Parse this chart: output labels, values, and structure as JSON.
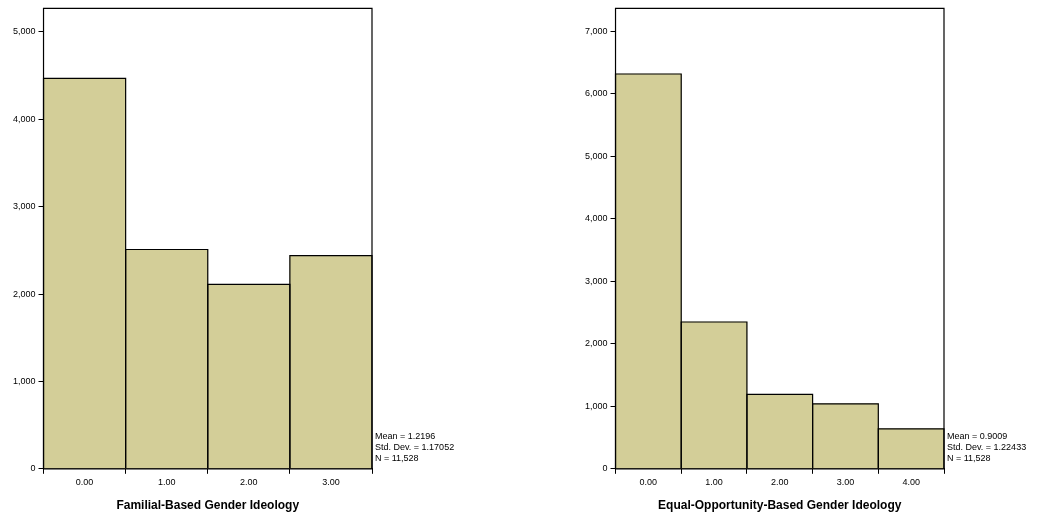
{
  "chart_data": [
    {
      "type": "histogram",
      "xlabel": "Familial-Based Gender Ideology",
      "bins": [
        -0.5,
        0.5,
        1.5,
        2.5,
        3.5
      ],
      "values": [
        4470,
        2510,
        2110,
        2440
      ],
      "color": "#d3ce98",
      "xlim": [
        -0.5,
        3.5
      ],
      "xticks": [
        {
          "value": 0,
          "label": "0.00"
        },
        {
          "value": 1,
          "label": "1.00"
        },
        {
          "value": 2,
          "label": "2.00"
        },
        {
          "value": 3,
          "label": "3.00"
        }
      ],
      "ylim": [
        0,
        5270
      ],
      "yticks": [
        0,
        {
          "value": 1000,
          "label": "1,000"
        },
        {
          "value": 2000,
          "label": "2,000"
        },
        {
          "value": 3000,
          "label": "3,000"
        },
        {
          "value": 4000,
          "label": "4,000"
        },
        {
          "value": 5000,
          "label": "5,000"
        }
      ],
      "grid": false,
      "legend": false,
      "annotations": [
        "Mean = 1.2196",
        "Std. Dev. = 1.17052",
        "N = 11,528"
      ]
    },
    {
      "type": "histogram",
      "xlabel": "Equal-Opportunity-Based Gender Ideology",
      "bins": [
        -0.5,
        0.5,
        1.5,
        2.5,
        3.5,
        4.5
      ],
      "values": [
        6320,
        2350,
        1190,
        1040,
        640
      ],
      "color": "#d3ce98",
      "xlim": [
        -0.5,
        4.5
      ],
      "xticks": [
        {
          "value": 0,
          "label": "0.00"
        },
        {
          "value": 1,
          "label": "1.00"
        },
        {
          "value": 2,
          "label": "2.00"
        },
        {
          "value": 3,
          "label": "3.00"
        },
        {
          "value": 4,
          "label": "4.00"
        }
      ],
      "ylim": [
        0,
        7370
      ],
      "yticks": [
        0,
        {
          "value": 1000,
          "label": "1,000"
        },
        {
          "value": 2000,
          "label": "2,000"
        },
        {
          "value": 3000,
          "label": "3,000"
        },
        {
          "value": 4000,
          "label": "4,000"
        },
        {
          "value": 5000,
          "label": "5,000"
        },
        {
          "value": 6000,
          "label": "6,000"
        },
        {
          "value": 7000,
          "label": "7,000"
        }
      ],
      "grid": false,
      "legend": false,
      "annotations": [
        "Mean = 0.9009",
        "Std. Dev. = 1.22433",
        "N = 11,528"
      ]
    }
  ]
}
